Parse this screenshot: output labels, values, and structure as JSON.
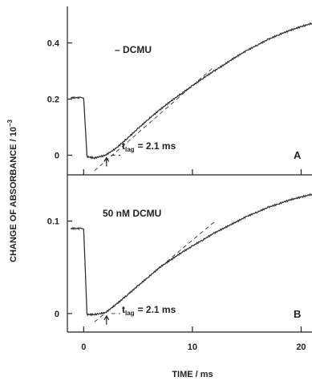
{
  "chart_data": [
    {
      "type": "line",
      "panel_label": "A",
      "annotation": "– DCMU",
      "tlag_label": "t",
      "tlag_subscript": "lag",
      "tlag_value": "= 2.1 ms",
      "xlim": [
        -1.5,
        21
      ],
      "ylim": [
        -0.07,
        0.53
      ],
      "yticks": [
        0,
        0.2,
        0.4
      ],
      "ytick_labels": [
        "0",
        "0.2",
        "0.4"
      ],
      "xticks": [
        0,
        10,
        20
      ],
      "series": [
        {
          "x": [
            -1.2,
            -0.3,
            0.0,
            0.3,
            1.0,
            2.0,
            3.0,
            4.0,
            5.0,
            6.0,
            7.0,
            8.0,
            9.0,
            10.0,
            11.0,
            12.0,
            13.0,
            14.0,
            15.0,
            16.0,
            17.0,
            18.0,
            19.0,
            20.0,
            21.0
          ],
          "y": [
            0.205,
            0.205,
            0.205,
            -0.005,
            -0.01,
            0.0,
            0.025,
            0.06,
            0.095,
            0.13,
            0.162,
            0.192,
            0.22,
            0.247,
            0.275,
            0.3,
            0.325,
            0.35,
            0.373,
            0.393,
            0.413,
            0.43,
            0.445,
            0.458,
            0.47
          ]
        }
      ],
      "tangent": {
        "x": [
          1.0,
          12.0
        ],
        "y": [
          -0.055,
          0.315
        ]
      },
      "lag_arrow_x": 2.1
    },
    {
      "type": "line",
      "panel_label": "B",
      "annotation": "50 nM DCMU",
      "tlag_label": "t",
      "tlag_subscript": "lag",
      "tlag_value": "= 2.1 ms",
      "xlim": [
        -1.5,
        21
      ],
      "ylim": [
        -0.02,
        0.15
      ],
      "yticks": [
        0,
        0.1
      ],
      "ytick_labels": [
        "0",
        "0.1"
      ],
      "xticks": [
        0,
        10,
        20
      ],
      "series": [
        {
          "x": [
            -1.2,
            -0.3,
            0.0,
            0.3,
            1.0,
            2.0,
            3.0,
            4.0,
            5.0,
            6.0,
            7.0,
            8.0,
            9.0,
            10.0,
            11.0,
            12.0,
            13.0,
            14.0,
            15.0,
            16.0,
            17.0,
            18.0,
            19.0,
            20.0,
            21.0
          ],
          "y": [
            0.092,
            0.092,
            0.092,
            -0.001,
            -0.001,
            0.001,
            0.01,
            0.02,
            0.03,
            0.04,
            0.05,
            0.058,
            0.066,
            0.073,
            0.08,
            0.087,
            0.093,
            0.099,
            0.105,
            0.11,
            0.115,
            0.119,
            0.123,
            0.126,
            0.129
          ]
        }
      ],
      "tangent": {
        "x": [
          1.0,
          12.0
        ],
        "y": [
          -0.009,
          0.099
        ]
      },
      "lag_arrow_x": 2.1
    }
  ],
  "xlabel": "TIME / ms",
  "xtick_labels": [
    "0",
    "10",
    "20"
  ],
  "ylabel": "CHANGE OF ABSORBANCE / 10",
  "ylabel_exponent": "−3"
}
